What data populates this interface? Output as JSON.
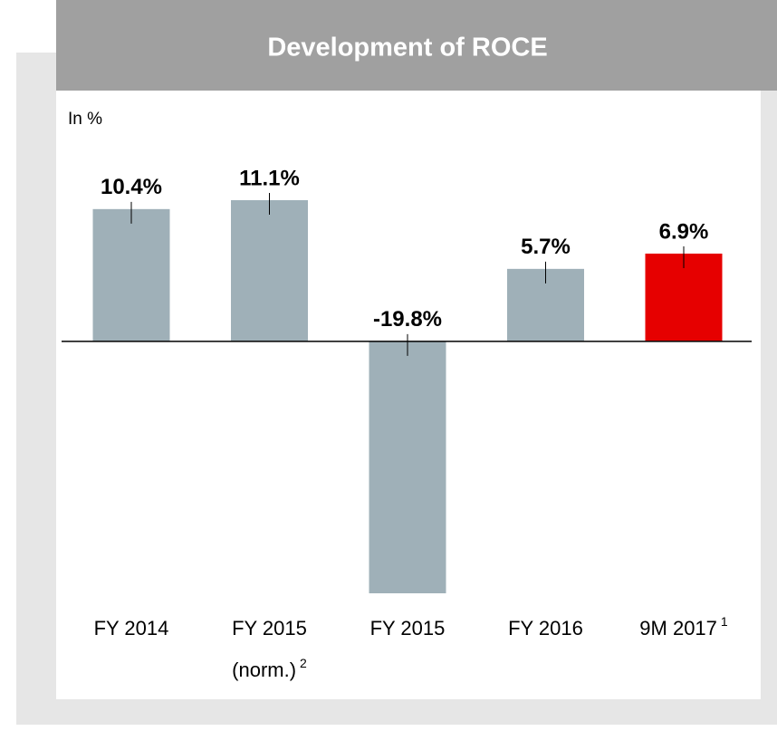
{
  "chart_data": {
    "type": "bar",
    "title": "Development of ROCE",
    "unit_label": "In %",
    "categories": [
      "FY 2014",
      "FY 2015 (norm.)",
      "FY 2015",
      "FY 2016",
      "9M 2017"
    ],
    "category_footnotes": [
      null,
      "2",
      null,
      null,
      "1"
    ],
    "values": [
      10.4,
      11.1,
      -19.8,
      5.7,
      6.9
    ],
    "value_labels": [
      "10.4%",
      "11.1%",
      "-19.8%",
      "5.7%",
      "6.9%"
    ],
    "colors": [
      "#9fb0b8",
      "#9fb0b8",
      "#9fb0b8",
      "#9fb0b8",
      "#e60000"
    ]
  }
}
